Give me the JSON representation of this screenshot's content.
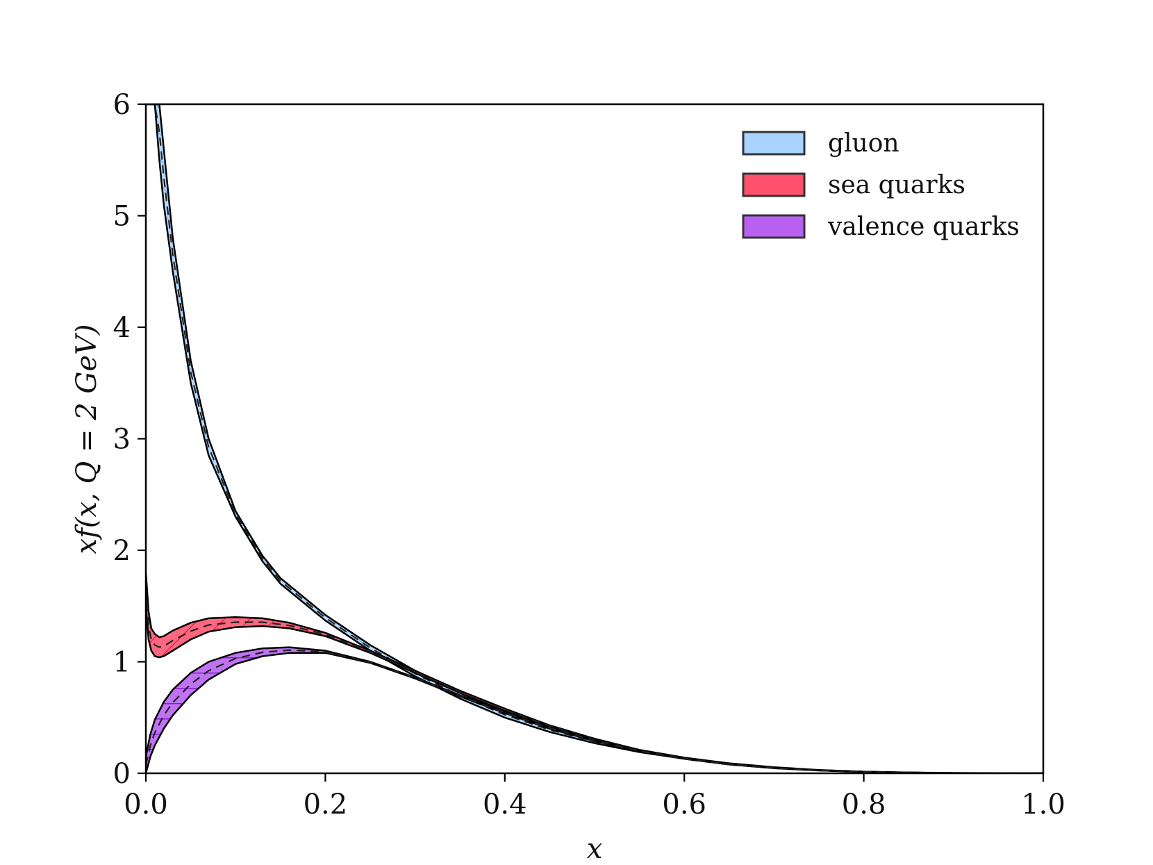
{
  "chart_data": {
    "type": "area",
    "xlabel": "x",
    "ylabel": "xf(x, Q = 2 GeV)",
    "xlim": [
      0.0,
      1.0
    ],
    "ylim": [
      0,
      6
    ],
    "xticks": [
      "0.0",
      "0.2",
      "0.4",
      "0.6",
      "0.8",
      "1.0"
    ],
    "yticks": [
      "0",
      "1",
      "2",
      "3",
      "4",
      "5",
      "6"
    ],
    "legend_position": "top-right",
    "series": [
      {
        "name": "gluon",
        "color": "#99ccff",
        "hatch": "diagonal-up",
        "x": [
          0.001,
          0.005,
          0.01,
          0.015,
          0.02,
          0.03,
          0.05,
          0.07,
          0.1,
          0.13,
          0.15,
          0.2,
          0.25,
          0.3,
          0.35,
          0.4,
          0.45,
          0.5,
          0.55,
          0.6,
          0.65,
          0.7,
          0.75,
          0.8,
          0.85,
          0.9,
          0.95,
          1.0
        ],
        "upper": [
          6.0,
          6.0,
          6.0,
          6.0,
          5.6,
          4.8,
          3.7,
          3.0,
          2.35,
          1.95,
          1.75,
          1.42,
          1.15,
          0.92,
          0.72,
          0.55,
          0.41,
          0.3,
          0.21,
          0.14,
          0.09,
          0.055,
          0.03,
          0.015,
          0.007,
          0.003,
          0.001,
          0.0
        ],
        "lower": [
          6.0,
          6.0,
          6.0,
          5.5,
          5.1,
          4.5,
          3.5,
          2.85,
          2.3,
          1.9,
          1.7,
          1.37,
          1.1,
          0.87,
          0.67,
          0.5,
          0.37,
          0.27,
          0.19,
          0.13,
          0.08,
          0.05,
          0.027,
          0.013,
          0.006,
          0.002,
          0.001,
          0.0
        ]
      },
      {
        "name": "sea quarks",
        "color": "#ff3355",
        "hatch": "diagonal-down",
        "x": [
          0.0,
          0.003,
          0.006,
          0.01,
          0.015,
          0.02,
          0.03,
          0.05,
          0.07,
          0.1,
          0.13,
          0.16,
          0.2,
          0.25,
          0.3,
          0.35,
          0.4,
          0.45,
          0.5,
          0.55,
          0.6,
          0.65,
          0.7,
          0.75,
          0.8,
          0.85,
          0.9,
          0.95,
          1.0
        ],
        "upper": [
          1.8,
          1.45,
          1.3,
          1.25,
          1.22,
          1.23,
          1.28,
          1.35,
          1.39,
          1.4,
          1.39,
          1.35,
          1.26,
          1.1,
          0.92,
          0.74,
          0.58,
          0.43,
          0.31,
          0.21,
          0.14,
          0.085,
          0.05,
          0.028,
          0.014,
          0.006,
          0.002,
          0.001,
          0.0
        ],
        "lower": [
          1.5,
          1.2,
          1.1,
          1.05,
          1.04,
          1.05,
          1.1,
          1.2,
          1.27,
          1.31,
          1.32,
          1.3,
          1.23,
          1.08,
          0.9,
          0.72,
          0.56,
          0.42,
          0.3,
          0.2,
          0.13,
          0.08,
          0.048,
          0.026,
          0.013,
          0.006,
          0.002,
          0.001,
          0.0
        ]
      },
      {
        "name": "valence quarks",
        "color": "#aa44ee",
        "hatch": "horizontal",
        "x": [
          0.0,
          0.005,
          0.01,
          0.02,
          0.03,
          0.05,
          0.07,
          0.1,
          0.13,
          0.16,
          0.2,
          0.25,
          0.3,
          0.35,
          0.4,
          0.45,
          0.5,
          0.55,
          0.6,
          0.65,
          0.7,
          0.75,
          0.8,
          0.85,
          0.9,
          0.95,
          1.0
        ],
        "upper": [
          0.15,
          0.35,
          0.48,
          0.64,
          0.75,
          0.9,
          1.0,
          1.08,
          1.12,
          1.13,
          1.1,
          1.0,
          0.86,
          0.7,
          0.55,
          0.41,
          0.3,
          0.2,
          0.13,
          0.08,
          0.047,
          0.026,
          0.013,
          0.006,
          0.002,
          0.001,
          0.0
        ],
        "lower": [
          0.0,
          0.15,
          0.25,
          0.4,
          0.52,
          0.7,
          0.84,
          0.98,
          1.05,
          1.08,
          1.08,
          0.99,
          0.85,
          0.69,
          0.54,
          0.4,
          0.29,
          0.2,
          0.13,
          0.08,
          0.045,
          0.025,
          0.012,
          0.005,
          0.002,
          0.001,
          0.0
        ]
      }
    ]
  }
}
